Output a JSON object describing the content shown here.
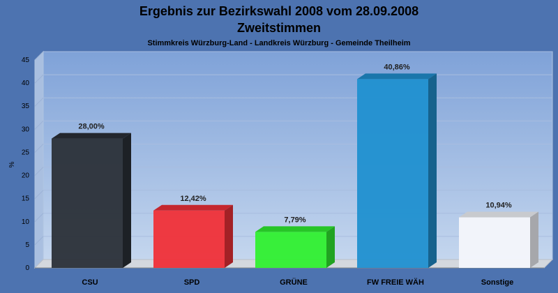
{
  "chart_data": {
    "type": "bar",
    "title": "Ergebnis zur Bezirkswahl 2008 vom 28.09.2008",
    "subtitle": "Zweitstimmen",
    "caption": "Stimmkreis Würzburg-Land - Landkreis Würzburg - Gemeinde Theilheim",
    "ylabel": "%",
    "xlabel": "",
    "ylim": [
      0,
      45
    ],
    "yticks": [
      0,
      5,
      10,
      15,
      20,
      25,
      30,
      35,
      40,
      45
    ],
    "grid": true,
    "categories": [
      "CSU",
      "SPD",
      "GRÜNE",
      "FW FREIE WÄH",
      "Sonstige"
    ],
    "values": [
      28.0,
      12.42,
      7.79,
      40.86,
      10.94
    ],
    "value_labels": [
      "28,00%",
      "12,42%",
      "7,79%",
      "40,86%",
      "10,94%"
    ],
    "colors": [
      "#2b3038",
      "#f03038",
      "#30f030",
      "#2090d0",
      "#f4f6fb"
    ]
  }
}
